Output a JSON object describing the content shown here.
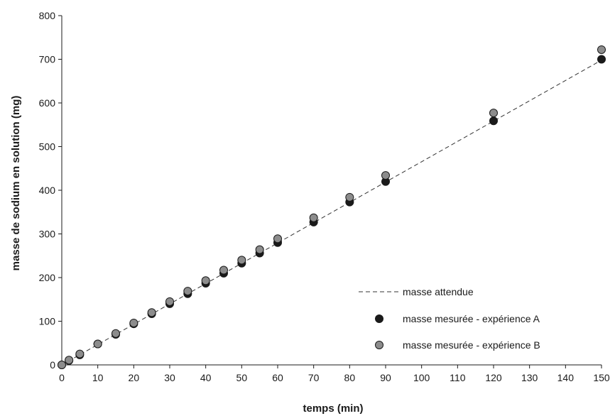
{
  "chart_data": {
    "type": "scatter",
    "title": "",
    "xlabel": "temps (min)",
    "ylabel": "masse de sodium en solution (mg)",
    "xlim": [
      0,
      150
    ],
    "ylim": [
      0,
      800
    ],
    "x_ticks": [
      0,
      10,
      20,
      30,
      40,
      50,
      60,
      70,
      80,
      90,
      100,
      110,
      120,
      130,
      140,
      150
    ],
    "y_ticks": [
      0,
      100,
      200,
      300,
      400,
      500,
      600,
      700,
      800
    ],
    "grid": false,
    "legend_position": "bottom-right",
    "expected_line": {
      "name": "masse attendue",
      "style": "dashed",
      "color": "#333333",
      "points": [
        [
          0,
          0
        ],
        [
          150,
          698
        ]
      ]
    },
    "series": [
      {
        "name": "masse mesurée - expérience A",
        "color": "#1a1a1a",
        "x": [
          0,
          2,
          5,
          10,
          15,
          20,
          25,
          30,
          35,
          40,
          45,
          50,
          55,
          60,
          70,
          80,
          90,
          120,
          150
        ],
        "y": [
          0,
          10,
          23,
          48,
          70,
          94,
          117,
          140,
          163,
          187,
          210,
          233,
          256,
          280,
          327,
          373,
          420,
          559,
          700
        ]
      },
      {
        "name": "masse mesurée - expérience B",
        "color": "#8c8c8c",
        "x": [
          0,
          2,
          5,
          10,
          15,
          20,
          25,
          30,
          35,
          40,
          45,
          50,
          55,
          60,
          70,
          80,
          90,
          120,
          150
        ],
        "y": [
          0,
          11,
          25,
          48,
          72,
          96,
          120,
          145,
          169,
          193,
          217,
          240,
          264,
          289,
          337,
          384,
          434,
          577,
          722
        ]
      }
    ]
  }
}
